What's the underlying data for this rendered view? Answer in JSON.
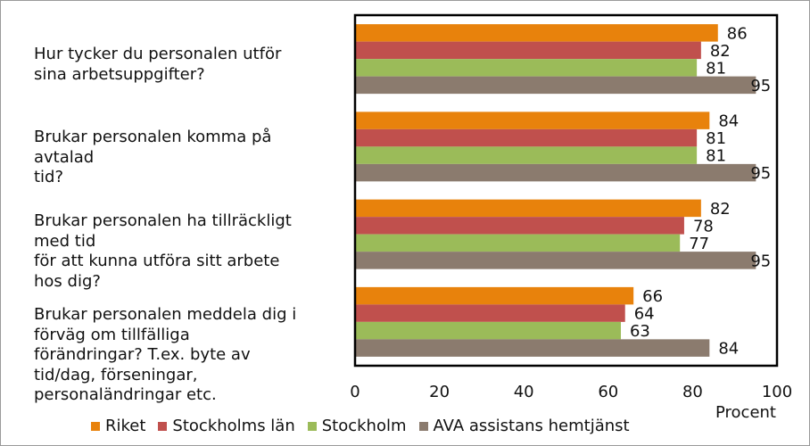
{
  "chart_data": {
    "type": "bar",
    "orientation": "horizontal",
    "title": "",
    "xlabel": "Procent",
    "ylabel": "",
    "xlim": [
      0,
      100
    ],
    "xticks": [
      0,
      20,
      40,
      60,
      80,
      100
    ],
    "grid": false,
    "legend_position": "bottom",
    "categories": [
      "Hur tycker du personalen utför\nsina arbetsuppgifter?",
      "Brukar personalen komma på\navtalad\ntid?",
      "Brukar personalen ha tillräckligt\nmed tid\nför att kunna utföra sitt arbete\nhos dig?",
      "Brukar personalen meddela dig i\nförväg om tillfälliga\nförändringar? T.ex. byte av\ntid/dag, förseningar,\npersonaländringar etc."
    ],
    "series": [
      {
        "name": "Riket",
        "color": "#e8820c",
        "values": [
          86,
          84,
          82,
          66
        ]
      },
      {
        "name": "Stockholms län",
        "color": "#c0504d",
        "values": [
          82,
          81,
          78,
          64
        ]
      },
      {
        "name": "Stockholm",
        "color": "#9bbb59",
        "values": [
          81,
          81,
          77,
          63
        ]
      },
      {
        "name": "AVA assistans hemtjänst",
        "color": "#8b7b6e",
        "values": [
          95,
          95,
          95,
          84
        ]
      }
    ]
  }
}
